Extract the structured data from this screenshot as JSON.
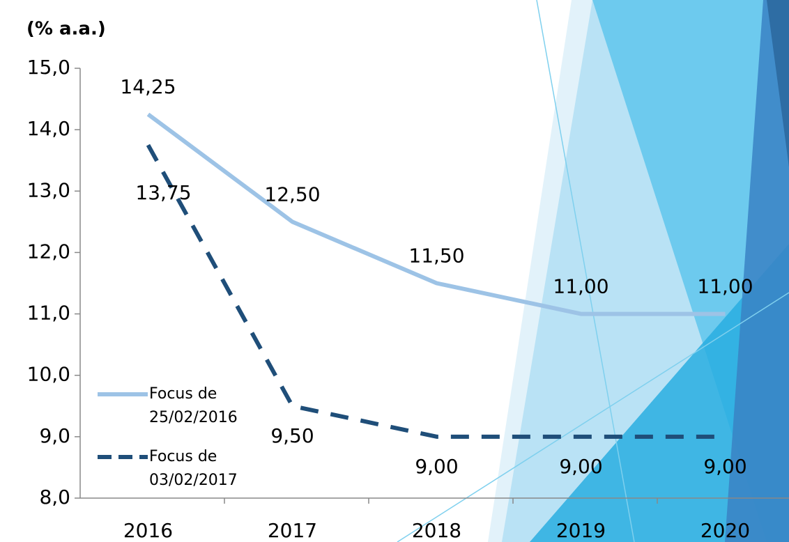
{
  "chart_data": {
    "type": "line",
    "title": "(% a.a.)",
    "categories": [
      "2016",
      "2017",
      "2018",
      "2019",
      "2020"
    ],
    "series": [
      {
        "name": "Focus de 25/02/2016",
        "color": "#9dc3e6",
        "dashed": false,
        "values": [
          14.25,
          12.5,
          11.5,
          11,
          11
        ],
        "value_labels": [
          "14,25",
          "12,50",
          "11,50",
          "11,00",
          "11,00"
        ]
      },
      {
        "name": "Focus de 03/02/2017",
        "color": "#1f4e79",
        "dashed": true,
        "values": [
          13.75,
          9.5,
          9,
          9,
          9
        ],
        "value_labels": [
          "13,75",
          "9,50",
          "9,00",
          "9,00",
          "9,00"
        ]
      }
    ],
    "ylim": [
      8,
      15
    ],
    "yticks": [
      {
        "value": 8,
        "label": "8,0"
      },
      {
        "value": 9,
        "label": "9,0"
      },
      {
        "value": 10,
        "label": "10,0"
      },
      {
        "value": 11,
        "label": "11,0"
      },
      {
        "value": 12,
        "label": "12,0"
      },
      {
        "value": 13,
        "label": "13,0"
      },
      {
        "value": 14,
        "label": "14,0"
      },
      {
        "value": 15,
        "label": "15,0"
      }
    ],
    "grid": false,
    "legend": "lower left"
  }
}
